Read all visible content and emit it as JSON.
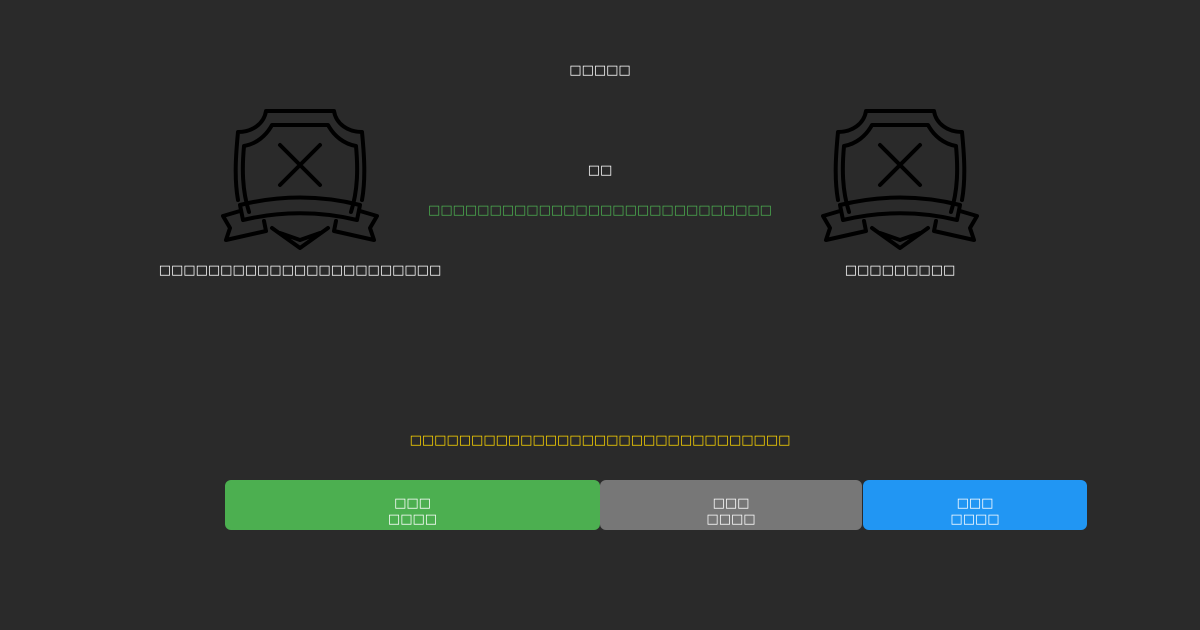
{
  "title": "□□□□□",
  "center": {
    "heading": "□□",
    "status_text": "□□□□□□□□□□□□□□□□□□□□□□□□□□□□",
    "status_color": "#4caf50"
  },
  "left_badge": {
    "icon": "shield-x-icon",
    "label": "□□□□□□□□□□□□□□□□□□□□□□□"
  },
  "right_badge": {
    "icon": "shield-x-icon",
    "label": "□□□□□□□□□"
  },
  "notice": {
    "text": "□□□□□□□□□□□□□□□□□□□□□□□□□□□□□□□",
    "color": "#ffd700"
  },
  "buttons": [
    {
      "line1": "□□□",
      "line2": "□□□□",
      "color": "#4caf50"
    },
    {
      "line1": "□□□",
      "line2": "□□□□",
      "color": "#777777"
    },
    {
      "line1": "□□□",
      "line2": "□□□□",
      "color": "#2196f3"
    }
  ]
}
